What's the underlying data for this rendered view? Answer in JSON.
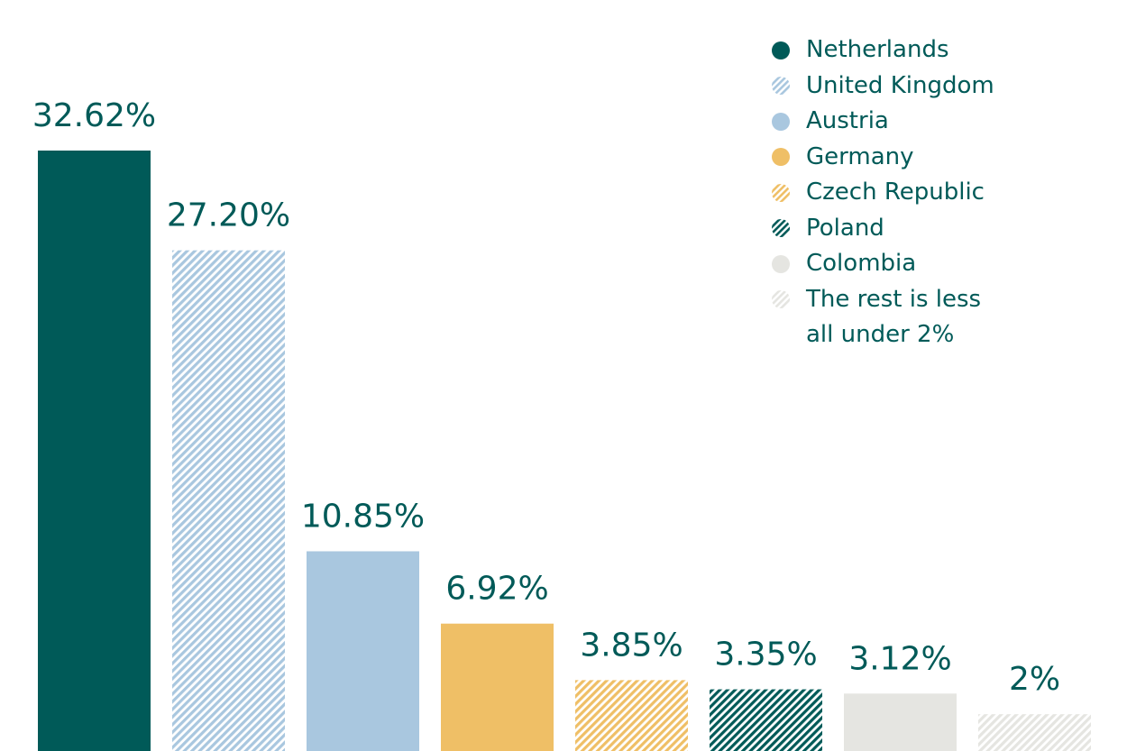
{
  "chart_data": {
    "type": "bar",
    "categories": [
      "Netherlands",
      "United Kingdom",
      "Austria",
      "Germany",
      "Czech Republic",
      "Poland",
      "Colombia",
      "The rest is less all under 2%"
    ],
    "values": [
      32.62,
      27.2,
      10.85,
      6.92,
      3.85,
      3.35,
      3.12,
      2
    ],
    "value_labels": [
      "32.62%",
      "27.20%",
      "10.85%",
      "6.92%",
      "3.85%",
      "3.35%",
      "3.12%",
      "2%"
    ],
    "legend_position": "top-right",
    "grid": false,
    "axes_visible": false,
    "bar_styles": [
      {
        "color": "#005a58",
        "pattern": "solid"
      },
      {
        "color": "#a9c7df",
        "pattern": "hatched"
      },
      {
        "color": "#a9c7df",
        "pattern": "solid"
      },
      {
        "color": "#efbf66",
        "pattern": "solid"
      },
      {
        "color": "#efbf66",
        "pattern": "hatched"
      },
      {
        "color": "#005a58",
        "pattern": "hatched"
      },
      {
        "color": "#e5e5e1",
        "pattern": "solid"
      },
      {
        "color": "#e5e5e1",
        "pattern": "hatched"
      }
    ]
  },
  "legend": {
    "items": [
      {
        "label": "Netherlands",
        "icon": "solid-circle"
      },
      {
        "label": "United Kingdom",
        "icon": "hatched-circle"
      },
      {
        "label": "Austria",
        "icon": "solid-circle"
      },
      {
        "label": "Germany",
        "icon": "solid-circle"
      },
      {
        "label": "Czech Republic",
        "icon": "hatched-circle"
      },
      {
        "label": "Poland",
        "icon": "hatched-circle"
      },
      {
        "label": "Colombia",
        "icon": "solid-circle"
      },
      {
        "label": "The rest is less all under 2%",
        "icon": "hatched-circle"
      }
    ]
  }
}
